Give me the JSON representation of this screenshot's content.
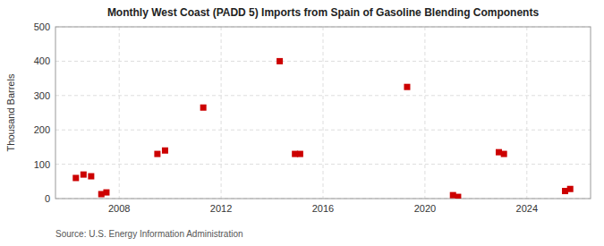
{
  "chart_data": {
    "type": "scatter",
    "title": "Monthly West Coast (PADD 5) Imports from Spain of Gasoline Blending Components",
    "ylabel": "Thousand Barrels",
    "source": "Source: U.S. Energy Information Administration",
    "x": [
      2006.3,
      2006.6,
      2006.9,
      2007.3,
      2007.5,
      2009.5,
      2009.8,
      2011.3,
      2014.3,
      2014.9,
      2015.1,
      2019.3,
      2021.1,
      2021.3,
      2022.9,
      2023.1,
      2025.5,
      2025.7
    ],
    "values": [
      60,
      70,
      65,
      13,
      18,
      130,
      140,
      265,
      400,
      130,
      130,
      325,
      10,
      5,
      135,
      130,
      22,
      28
    ],
    "color": "#cc0000",
    "marker": "square",
    "xlim": [
      2005.5,
      2026.5
    ],
    "ylim": [
      0,
      500
    ],
    "xticks": [
      2008,
      2012,
      2016,
      2020,
      2024
    ],
    "yticks": [
      0,
      100,
      200,
      300,
      400,
      500
    ],
    "grid": true
  }
}
